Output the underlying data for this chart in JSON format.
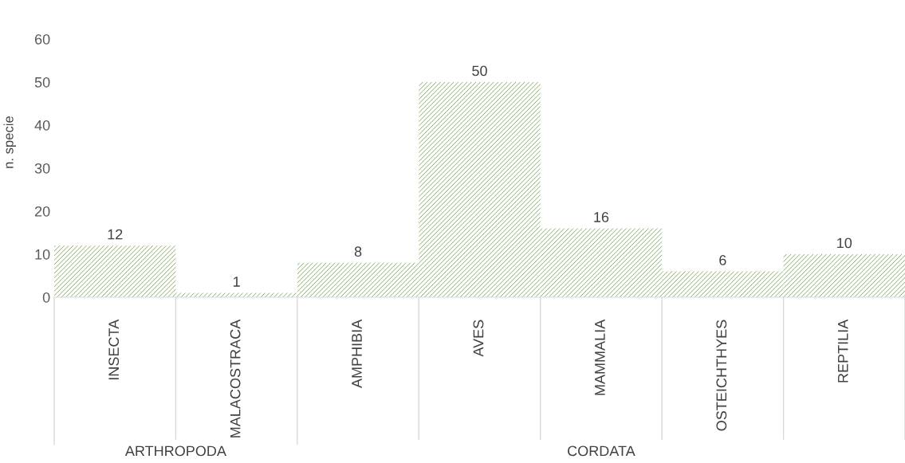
{
  "chart_data": {
    "type": "bar",
    "ylabel": "n. specie",
    "categories": [
      "INSECTA",
      "MALACOSTRACA",
      "AMPHIBIA",
      "AVES",
      "MAMMALIA",
      "OSTEICHTHYES",
      "REPTILIA"
    ],
    "values": [
      12,
      1,
      8,
      50,
      16,
      6,
      10
    ],
    "color": "#70a04a",
    "ylim": [
      0,
      60
    ],
    "yticks": [
      0,
      10,
      20,
      30,
      40,
      50,
      60
    ],
    "grid": false,
    "data_labels": true,
    "annotations": [
      "ARTHROPODA",
      "CORDATA"
    ]
  }
}
